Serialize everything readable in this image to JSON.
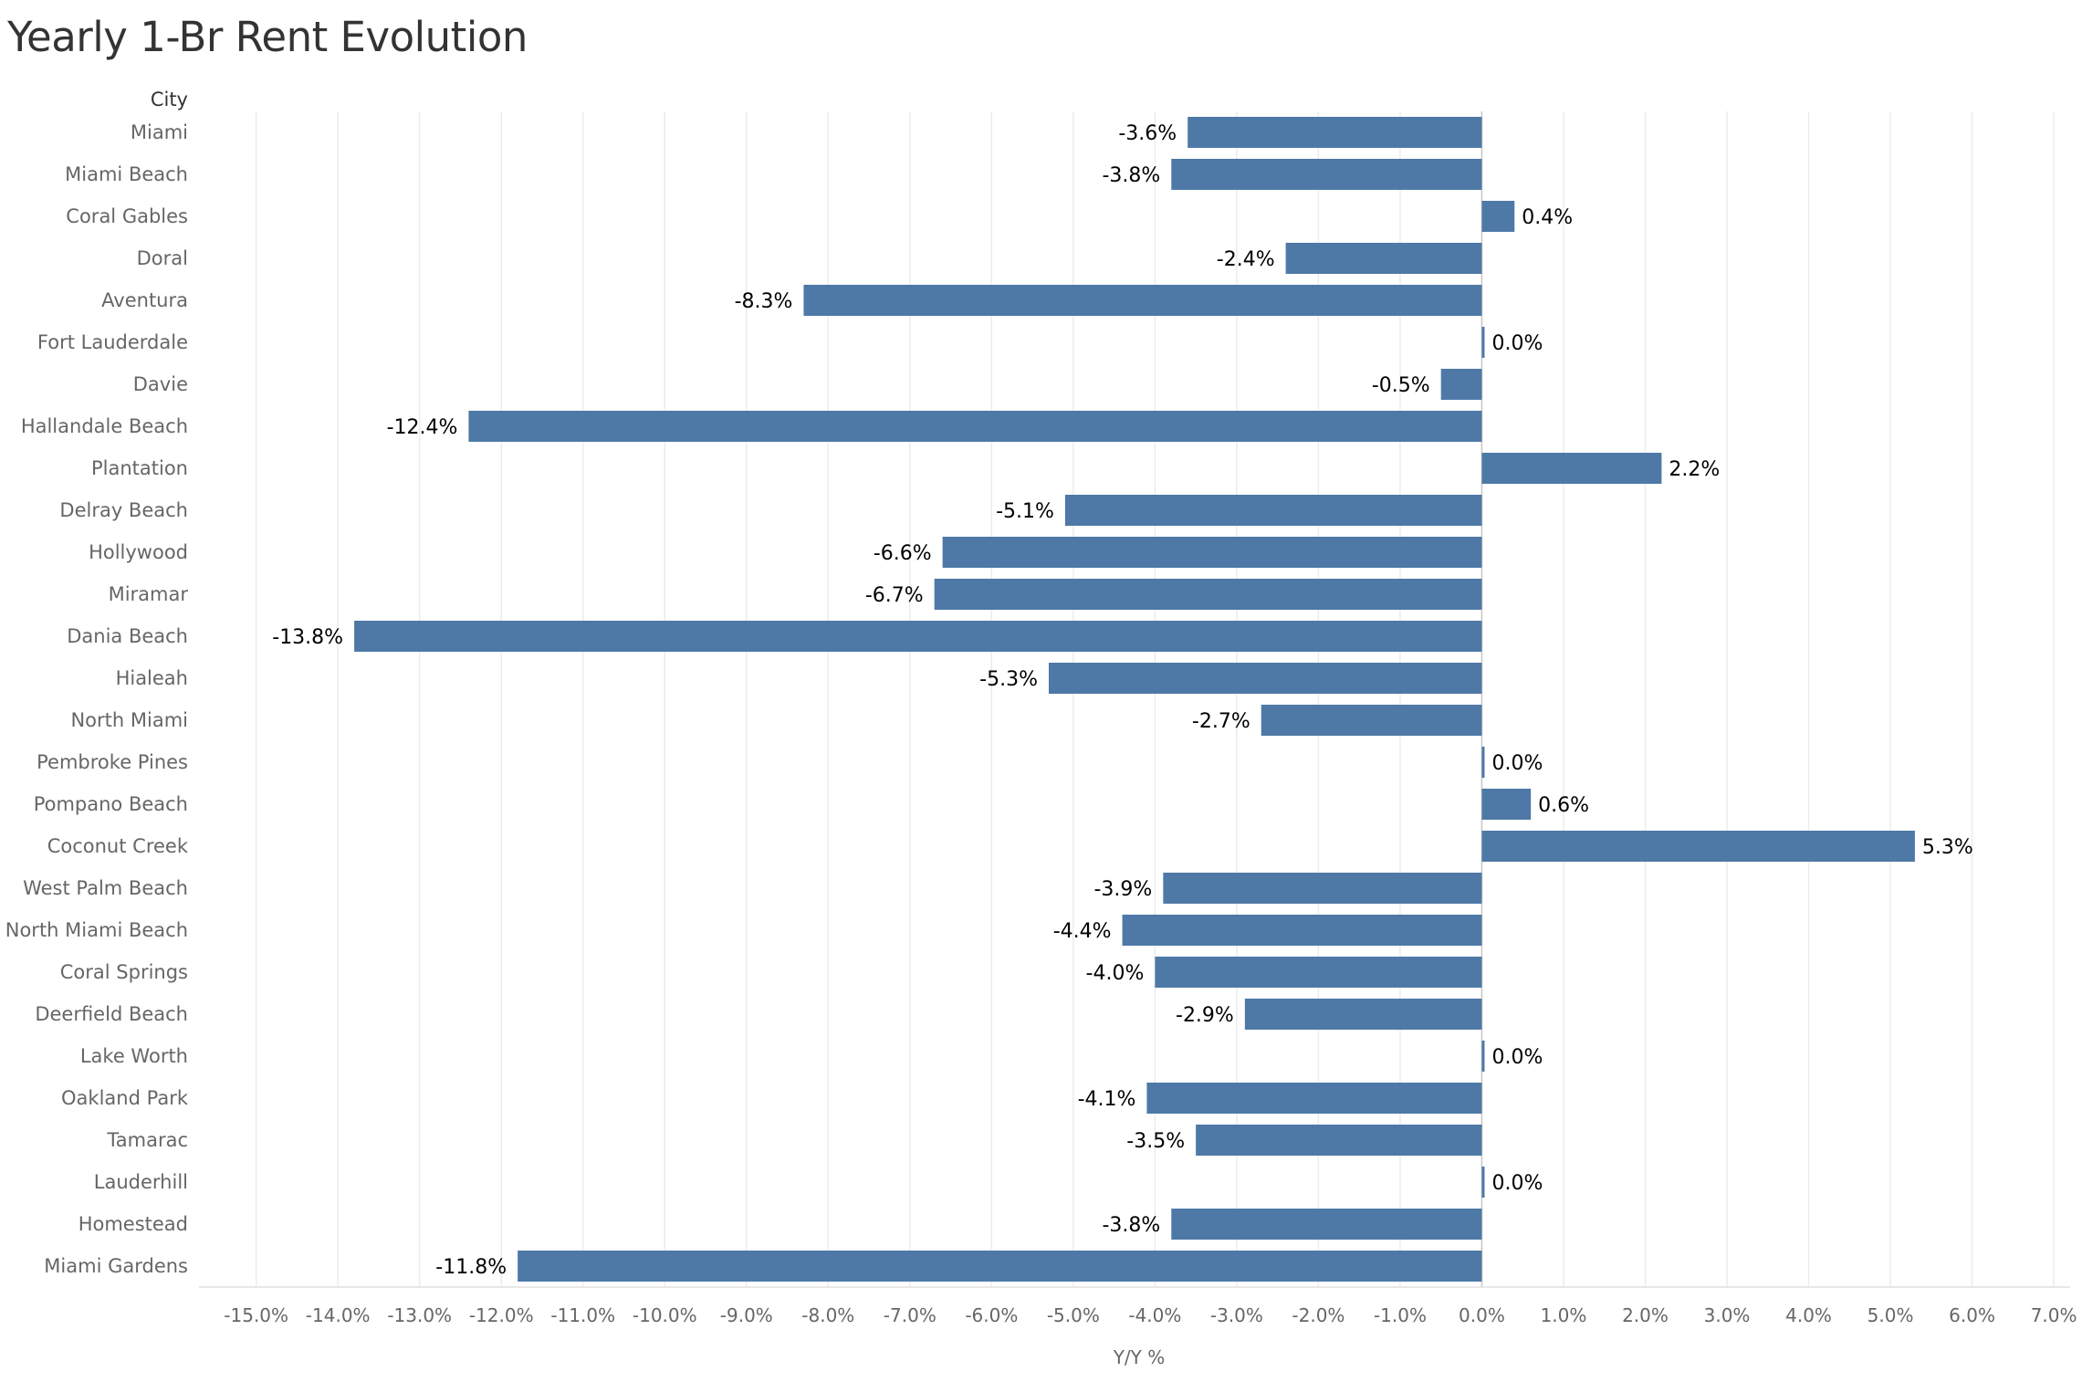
{
  "chart_data": {
    "type": "bar",
    "orientation": "horizontal",
    "title": "Yearly 1-Br Rent Evolution",
    "category_header": "City",
    "xlabel": "Y/Y %",
    "xlim": [
      -15.7,
      7.2
    ],
    "x_ticks": [
      -15,
      -14,
      -13,
      -12,
      -11,
      -10,
      -9,
      -8,
      -7,
      -6,
      -5,
      -4,
      -3,
      -2,
      -1,
      0,
      1,
      2,
      3,
      4,
      5,
      6,
      7
    ],
    "x_tick_labels": [
      "-15.0%",
      "-14.0%",
      "-13.0%",
      "-12.0%",
      "-11.0%",
      "-10.0%",
      "-9.0%",
      "-8.0%",
      "-7.0%",
      "-6.0%",
      "-5.0%",
      "-4.0%",
      "-3.0%",
      "-2.0%",
      "-1.0%",
      "0.0%",
      "1.0%",
      "2.0%",
      "3.0%",
      "4.0%",
      "5.0%",
      "6.0%",
      "7.0%"
    ],
    "grid": "vertical",
    "categories": [
      "Miami",
      "Miami Beach",
      "Coral Gables",
      "Doral",
      "Aventura",
      "Fort Lauderdale",
      "Davie",
      "Hallandale Beach",
      "Plantation",
      "Delray Beach",
      "Hollywood",
      "Miramar",
      "Dania Beach",
      "Hialeah",
      "North Miami",
      "Pembroke Pines",
      "Pompano Beach",
      "Coconut Creek",
      "West Palm Beach",
      "North Miami Beach",
      "Coral Springs",
      "Deerfield Beach",
      "Lake Worth",
      "Oakland Park",
      "Tamarac",
      "Lauderhill",
      "Homestead",
      "Miami Gardens"
    ],
    "values": [
      -3.6,
      -3.8,
      0.4,
      -2.4,
      -8.3,
      0.0,
      -0.5,
      -12.4,
      2.2,
      -5.1,
      -6.6,
      -6.7,
      -13.8,
      -5.3,
      -2.7,
      0.0,
      0.6,
      5.3,
      -3.9,
      -4.4,
      -4.0,
      -2.9,
      0.0,
      -4.1,
      -3.5,
      0.0,
      -3.8,
      -11.8
    ],
    "value_labels": [
      "-3.6%",
      "-3.8%",
      "0.4%",
      "-2.4%",
      "-8.3%",
      "0.0%",
      "-0.5%",
      "-12.4%",
      "2.2%",
      "-5.1%",
      "-6.6%",
      "-6.7%",
      "-13.8%",
      "-5.3%",
      "-2.7%",
      "0.0%",
      "0.6%",
      "5.3%",
      "-3.9%",
      "-4.4%",
      "-4.0%",
      "-2.9%",
      "0.0%",
      "-4.1%",
      "-3.5%",
      "0.0%",
      "-3.8%",
      "-11.8%"
    ],
    "colors": {
      "bar": "#4e79a7",
      "title": "#333333",
      "value_label": "#000000",
      "category_label": "#666666",
      "axis_label": "#666666",
      "category_header": "#333333",
      "grid": "#ececec"
    }
  }
}
